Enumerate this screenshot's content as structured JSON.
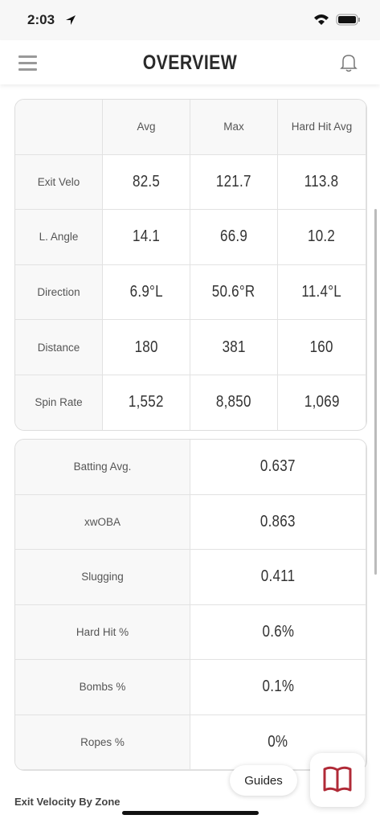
{
  "status_bar": {
    "time": "2:03"
  },
  "header": {
    "title": "OVERVIEW"
  },
  "metrics_table": {
    "columns": [
      "Avg",
      "Max",
      "Hard Hit Avg"
    ],
    "rows": [
      [
        "Exit Velo",
        "82.5",
        "121.7",
        "113.8"
      ],
      [
        "L. Angle",
        "14.1",
        "66.9",
        "10.2"
      ],
      [
        "Direction",
        "6.9°L",
        "50.6°R",
        "11.4°L"
      ],
      [
        "Distance",
        "180",
        "381",
        "160"
      ],
      [
        "Spin Rate",
        "1,552",
        "8,850",
        "1,069"
      ]
    ]
  },
  "stats_table": {
    "rows": [
      [
        "Batting Avg.",
        "0.637"
      ],
      [
        "xwOBA",
        "0.863"
      ],
      [
        "Slugging",
        "0.411"
      ],
      [
        "Hard Hit %",
        "0.6%"
      ],
      [
        "Bombs %",
        "0.1%"
      ],
      [
        "Ropes %",
        "0%"
      ]
    ]
  },
  "guides_button": "Guides",
  "section_title": "Exit Velocity By Zone"
}
